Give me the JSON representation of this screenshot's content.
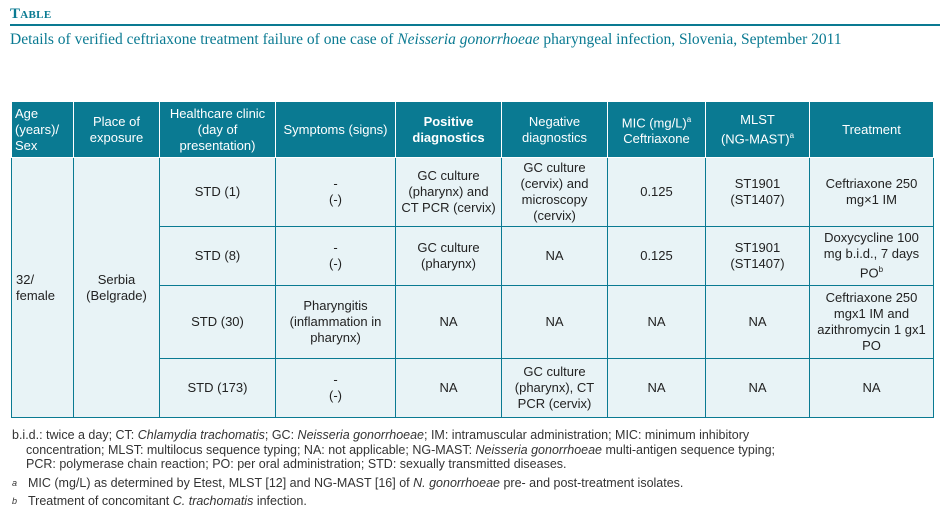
{
  "label": "Table",
  "title_before": "Details of verified ceftriaxone treatment failure of one case of ",
  "title_species": "Neisseria gonorrhoeae",
  "title_after": " pharyngeal infection, Slovenia, September 2011",
  "headers": {
    "age": "Age (years)/ Sex",
    "place": "Place of exposure",
    "clinic": "Healthcare clinic (day of presentation)",
    "symptoms": "Symptoms (signs)",
    "positive": "Positive diagnostics",
    "negative": "Negative diagnostics",
    "mic": "MIC (mg/L)",
    "mic_sup": "a",
    "mic_sub": "Ceftriaxone",
    "mlst": "MLST",
    "mlst_sub": "(NG-MAST)",
    "mlst_sup": "a",
    "treatment": "Treatment"
  },
  "patient": {
    "age_sex": "32/ female",
    "place": "Serbia (Belgrade)"
  },
  "rows": [
    {
      "clinic": "STD (1)",
      "symptoms": "-",
      "signs": "(-)",
      "positive": "GC culture (pharynx) and CT PCR (cervix)",
      "negative": "GC culture (cervix) and microscopy (cervix)",
      "mic": "0.125",
      "mlst": "ST1901",
      "ngmast": "(ST1407)",
      "treatment": "Ceftriaxone 250 mg×1 IM",
      "treatment_sup": ""
    },
    {
      "clinic": "STD (8)",
      "symptoms": "-",
      "signs": "(-)",
      "positive": "GC culture (pharynx)",
      "negative": "NA",
      "mic": "0.125",
      "mlst": "ST1901",
      "ngmast": "(ST1407)",
      "treatment": "Doxycycline 100 mg b.i.d., 7 days PO",
      "treatment_sup": "b"
    },
    {
      "clinic": "STD (30)",
      "symptoms": "Pharyngitis",
      "signs": "(inflammation in pharynx)",
      "positive": "NA",
      "negative": "NA",
      "mic": "NA",
      "mlst": "NA",
      "ngmast": "",
      "treatment": "Ceftriaxone 250 mgx1 IM and azithromycin 1 gx1 PO",
      "treatment_sup": ""
    },
    {
      "clinic": "STD (173)",
      "symptoms": "-",
      "signs": "(-)",
      "positive": "NA",
      "negative": "GC culture (pharynx), CT PCR (cervix)",
      "mic": "NA",
      "mlst": "NA",
      "ngmast": "",
      "treatment": "NA",
      "treatment_sup": ""
    }
  ],
  "abbrev": {
    "p1": "b.i.d.: twice a day; CT: ",
    "ct": "Chlamydia trachomatis",
    "p2": "; GC: ",
    "gc": "Neisseria gonorrhoeae",
    "p3": "; IM: intramuscular administration; MIC: minimum inhibitory",
    "p4": "concentration; MLST: multilocus sequence typing; NA: not applicable; NG-MAST: ",
    "ng": "Neisseria gonorrhoeae",
    "p5": " multi-antigen sequence typing;",
    "p6": "PCR: polymerase chain reaction; PO: per oral administration; STD: sexually transmitted diseases."
  },
  "footnotes": {
    "a_mark": "a",
    "a_text1": "MIC (mg/L) as determined by Etest, MLST [12] and NG-MAST [16] of ",
    "a_species": "N. gonorrhoeae",
    "a_text2": " pre- and post-treatment isolates.",
    "b_mark": "b",
    "b_text1": "Treatment of concomitant ",
    "b_species": "C. trachomatis",
    "b_text2": " infection."
  }
}
